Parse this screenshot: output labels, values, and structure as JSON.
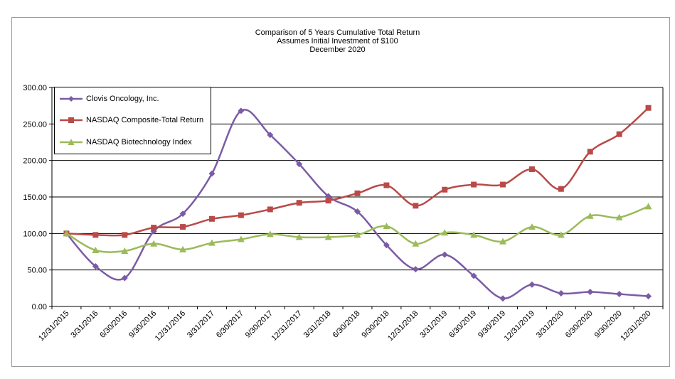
{
  "chart_data": {
    "type": "line",
    "title": [
      "Comparison of 5 Years Cumulative Total Return",
      "Assumes Initial Investment of $100",
      "December 2020"
    ],
    "categories": [
      "12/31/2015",
      "3/31/2016",
      "6/30/2016",
      "9/30/2016",
      "12/31/2016",
      "3/31/2017",
      "6/30/2017",
      "9/30/2017",
      "12/31/2017",
      "3/31/2018",
      "6/30/2018",
      "9/30/2018",
      "12/31/2018",
      "3/31/2019",
      "6/30/2019",
      "9/30/2019",
      "12/31/2019",
      "3/31/2020",
      "6/30/2020",
      "9/30/2020",
      "12/31/2020"
    ],
    "ylim": [
      0,
      300
    ],
    "yticks": [
      0,
      50,
      100,
      150,
      200,
      250,
      300
    ],
    "yticklabels": [
      "0.00",
      "50.00",
      "100.00",
      "150.00",
      "200.00",
      "250.00",
      "300.00"
    ],
    "xlabel": "",
    "ylabel": "",
    "legend_position": "top-left",
    "series": [
      {
        "name": "Clovis Oncology, Inc.",
        "color": "#7B5BA5",
        "marker": "diamond",
        "values": [
          100,
          55,
          39,
          103,
          127,
          182,
          268,
          235,
          195,
          151,
          130,
          84,
          51,
          71,
          42,
          11,
          30,
          18,
          20,
          17,
          14
        ]
      },
      {
        "name": "NASDAQ Composite-Total Return",
        "color": "#B94A48",
        "marker": "square",
        "values": [
          100,
          98,
          98,
          108,
          109,
          120,
          125,
          133,
          142,
          145,
          155,
          166,
          138,
          160,
          167,
          167,
          188,
          161,
          212,
          236,
          272
        ]
      },
      {
        "name": "NASDAQ Biotechnology Index",
        "color": "#9BBB59",
        "marker": "triangle",
        "values": [
          100,
          77,
          76,
          86,
          78,
          87,
          92,
          99,
          95,
          95,
          98,
          110,
          86,
          101,
          98,
          89,
          109,
          98,
          124,
          122,
          137
        ]
      }
    ]
  }
}
